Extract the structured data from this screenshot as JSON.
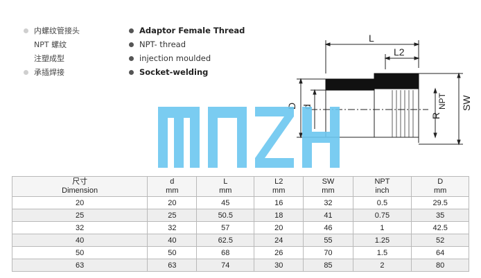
{
  "spec_cn": [
    "内螺纹管接头",
    "NPT 螺纹",
    "注塑成型",
    "承插焊接"
  ],
  "spec_en": [
    "Adaptor Female Thread",
    "NPT- thread",
    "injection moulded",
    "Socket-welding"
  ],
  "drawing_labels": {
    "L": "L",
    "L2": "L2",
    "D": "D",
    "d": "d",
    "R": "R",
    "NPT": "NPT",
    "SW": "SW"
  },
  "watermark": {
    "text": "MNZH",
    "color": "#6cc7f0"
  },
  "table": {
    "headers": [
      {
        "top": "尺寸",
        "bottom": "Dimension"
      },
      {
        "top": "d",
        "bottom": "mm"
      },
      {
        "top": "L",
        "bottom": "mm"
      },
      {
        "top": "L2",
        "bottom": "mm"
      },
      {
        "top": "SW",
        "bottom": "mm"
      },
      {
        "top": "NPT",
        "bottom": "inch"
      },
      {
        "top": "D",
        "bottom": "mm"
      }
    ],
    "rows": [
      [
        "20",
        "20",
        "45",
        "16",
        "32",
        "0.5",
        "29.5"
      ],
      [
        "25",
        "25",
        "50.5",
        "18",
        "41",
        "0.75",
        "35"
      ],
      [
        "32",
        "32",
        "57",
        "20",
        "46",
        "1",
        "42.5"
      ],
      [
        "40",
        "40",
        "62.5",
        "24",
        "55",
        "1.25",
        "52"
      ],
      [
        "50",
        "50",
        "68",
        "26",
        "70",
        "1.5",
        "64"
      ],
      [
        "63",
        "63",
        "74",
        "30",
        "85",
        "2",
        "80"
      ]
    ]
  }
}
